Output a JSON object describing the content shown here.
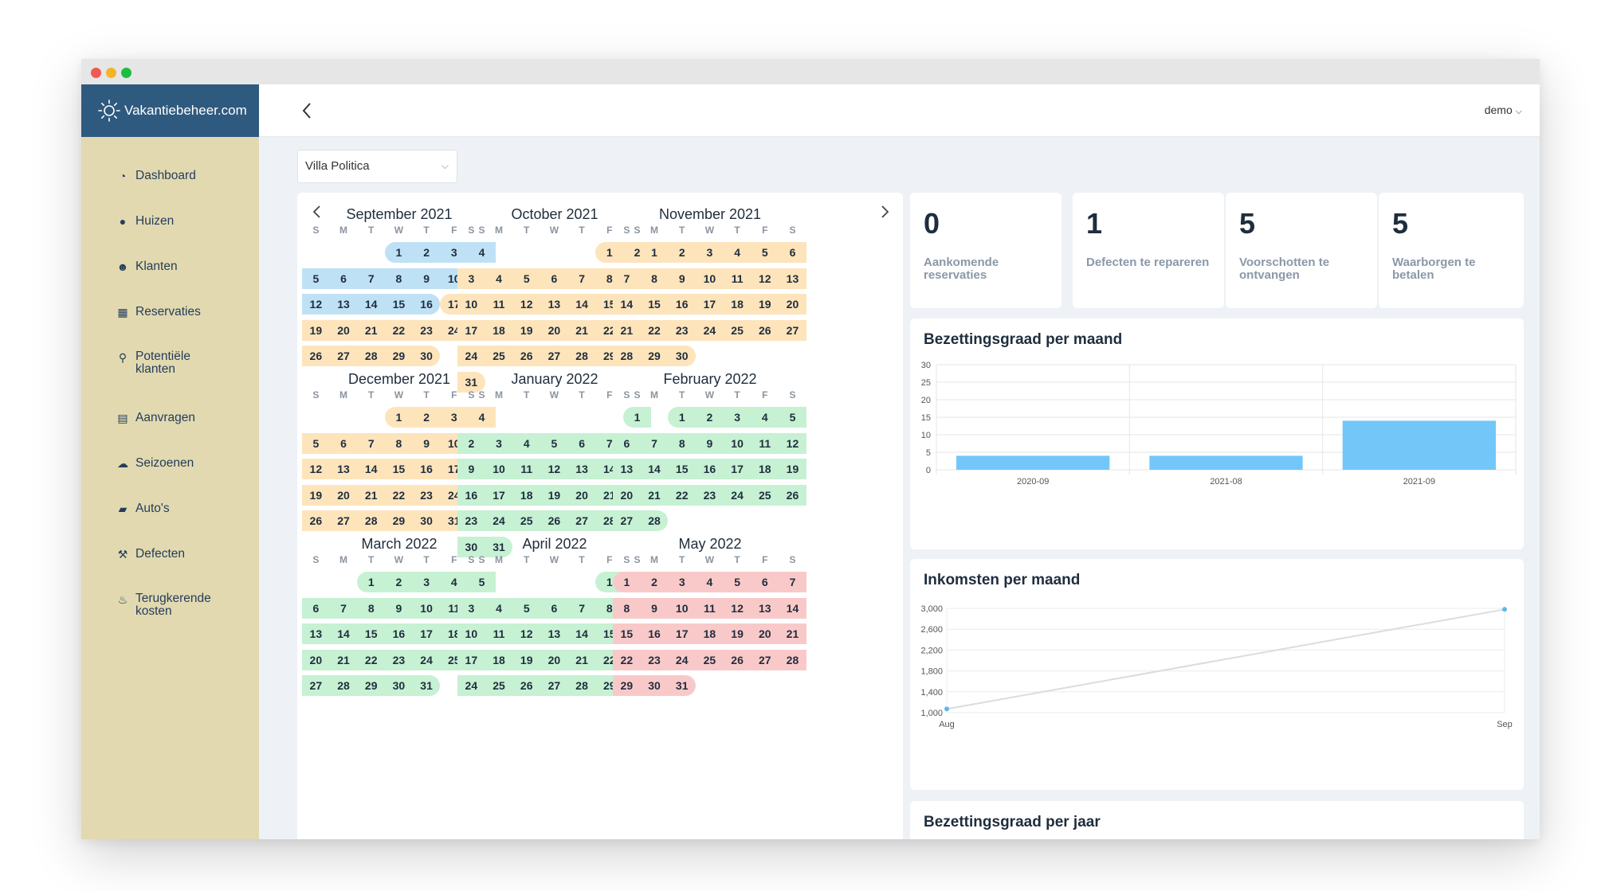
{
  "app": {
    "brand": "Vakantiebeheer.com",
    "user": "demo"
  },
  "sidebar": {
    "items": [
      {
        "label": "Dashboard",
        "icon": "dashboard-icon"
      },
      {
        "label": "Huizen",
        "icon": "map-pin-icon"
      },
      {
        "label": "Klanten",
        "icon": "users-icon"
      },
      {
        "label": "Reservaties",
        "icon": "calendar-icon"
      },
      {
        "label": "Potentiële klanten",
        "icon": "search-icon"
      },
      {
        "label": "Aanvragen",
        "icon": "inbox-icon"
      },
      {
        "label": "Seizoenen",
        "icon": "weather-icon"
      },
      {
        "label": "Auto's",
        "icon": "car-icon"
      },
      {
        "label": "Defecten",
        "icon": "hammer-icon"
      },
      {
        "label": "Terugkerende kosten",
        "icon": "piggy-bank-icon"
      }
    ]
  },
  "property_select": {
    "value": "Villa Politica"
  },
  "weekdays": [
    "S",
    "M",
    "T",
    "W",
    "T",
    "F",
    "S"
  ],
  "colors": {
    "orange": "#fde4bb",
    "blue": "#bfe1f5",
    "green": "#c6f1d3",
    "red": "#f9c9c9",
    "bar": "#73c7f8"
  },
  "calendar": [
    {
      "title": "September 2021",
      "offset": 3,
      "days": 30,
      "ranges": [
        [
          "b",
          1,
          16
        ],
        [
          "o",
          17,
          30
        ]
      ]
    },
    {
      "title": "October 2021",
      "offset": 5,
      "days": 31,
      "ranges": [
        [
          "o",
          1,
          31
        ]
      ]
    },
    {
      "title": "November 2021",
      "offset": 1,
      "days": 30,
      "ranges": [
        [
          "o",
          1,
          30
        ]
      ]
    },
    {
      "title": "December 2021",
      "offset": 3,
      "days": 31,
      "ranges": [
        [
          "o",
          1,
          31
        ]
      ]
    },
    {
      "title": "January 2022",
      "offset": 6,
      "days": 31,
      "ranges": [
        [
          "g",
          1,
          31
        ]
      ]
    },
    {
      "title": "February 2022",
      "offset": 2,
      "days": 28,
      "ranges": [
        [
          "g",
          1,
          28
        ]
      ]
    },
    {
      "title": "March 2022",
      "offset": 2,
      "days": 31,
      "ranges": [
        [
          "g",
          1,
          31
        ]
      ]
    },
    {
      "title": "April 2022",
      "offset": 5,
      "days": 30,
      "ranges": [
        [
          "g",
          1,
          30
        ]
      ]
    },
    {
      "title": "May 2022",
      "offset": 0,
      "days": 31,
      "ranges": [
        [
          "r",
          1,
          31
        ]
      ]
    }
  ],
  "stats": [
    {
      "value": "0",
      "label": "Aankomende reservaties"
    },
    {
      "value": "1",
      "label": "Defecten te repareren"
    },
    {
      "value": "5",
      "label": "Voorschotten te ontvangen"
    },
    {
      "value": "5",
      "label": "Waarborgen te betalen"
    }
  ],
  "panels": {
    "occupancy_month_title": "Bezettingsgraad per maand",
    "income_month_title": "Inkomsten per maand",
    "occupancy_year_title": "Bezettingsgraad per jaar"
  },
  "chart_data": [
    {
      "type": "bar",
      "title": "Bezettingsgraad per maand",
      "categories": [
        "2020-09",
        "2021-08",
        "2021-09"
      ],
      "values": [
        4,
        4,
        14
      ],
      "ylim": [
        0,
        30
      ],
      "yticks": [
        "30",
        "25",
        "20",
        "15",
        "10",
        "5",
        "0"
      ],
      "grid": true
    },
    {
      "type": "line",
      "title": "Inkomsten per maand",
      "x": [
        "Aug",
        "Sep"
      ],
      "values": [
        1070,
        2980
      ],
      "ylim": [
        1000,
        3000
      ],
      "yticks": [
        "3,000",
        "2,600",
        "2,200",
        "1,800",
        "1,400",
        "1,000"
      ],
      "grid": true
    }
  ]
}
